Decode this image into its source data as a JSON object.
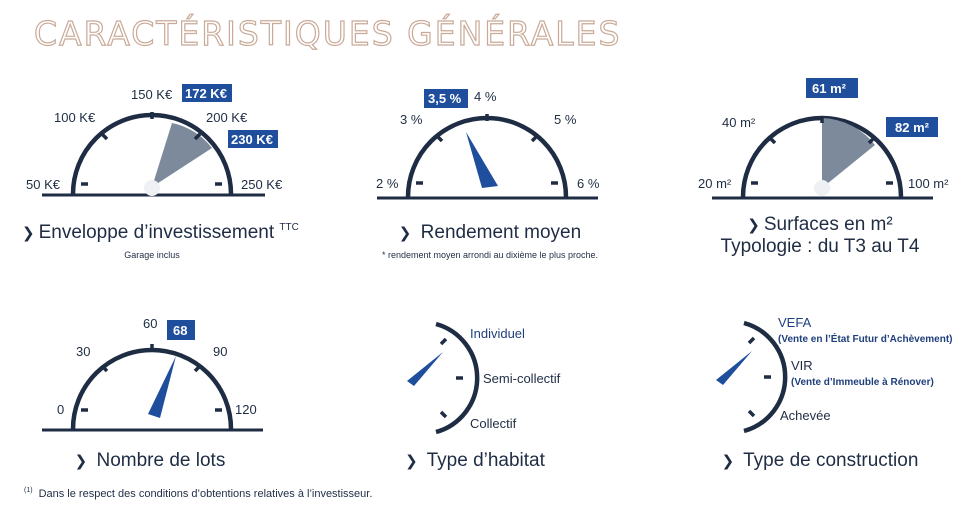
{
  "title": "CARACTÉRISTIQUES GÉNÉRALES",
  "colors": {
    "dark": "#1f2d44",
    "blue": "#1f4f9c",
    "gray": "#7d8a9c",
    "title": "#c9aa98"
  },
  "gauges": {
    "investissement": {
      "ticks": [
        "50 K€",
        "100 K€",
        "150 K€",
        "200 K€",
        "250 K€"
      ],
      "badges": [
        "172 K€",
        "230 K€"
      ],
      "caption": "Enveloppe d’investissement",
      "caption_sup": "TTC",
      "sub": "Garage inclus"
    },
    "rendement": {
      "ticks": [
        "2 %",
        "3 %",
        "4 %",
        "5 %",
        "6 %"
      ],
      "badge": "3,5 %",
      "caption": "Rendement moyen",
      "sub": "* rendement moyen arrondi au dixième le plus proche."
    },
    "surfaces": {
      "ticks": [
        "20 m²",
        "40 m²",
        "100 m²"
      ],
      "badges": [
        "61 m²",
        "82 m²"
      ],
      "caption": "Surfaces en m²",
      "caption2": "Typologie : du T3 au T4"
    },
    "lots": {
      "ticks": [
        "0",
        "30",
        "60",
        "90",
        "120"
      ],
      "badge": "68",
      "caption": "Nombre de lots"
    },
    "habitat": {
      "options": [
        "Individuel",
        "Semi-collectif",
        "Collectif"
      ],
      "caption": "Type d’habitat"
    },
    "construction": {
      "options": [
        "VEFA",
        "VIR",
        "Achevée"
      ],
      "option_subs": [
        "(Vente en l’État Futur d’Achèvement)",
        "(Vente d’Immeuble à Rénover)"
      ],
      "caption": "Type de construction"
    }
  },
  "footnote": {
    "mark": "(1)",
    "text": "Dans le respect des conditions d’obtentions relatives à l’investisseur."
  }
}
